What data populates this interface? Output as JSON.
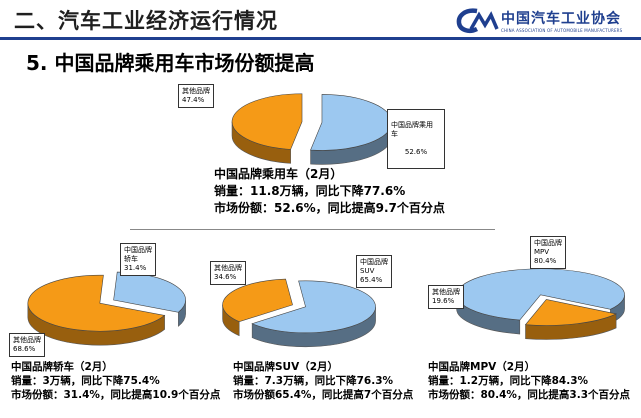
{
  "header": {
    "title": "二、汽车工业经济运行情况",
    "logo_name": "中国汽车工业协会",
    "logo_sub": "CHINA ASSOCIATION OF AUTOMOBILE MANUFACTURERS"
  },
  "section_title": "5. 中国品牌乘用车市场份额提高",
  "colors": {
    "brand": "#9cc8f0",
    "other": "#f59a17",
    "accent": "#1f3f8f"
  },
  "chart_data": [
    {
      "type": "pie",
      "categories": [
        "中国品牌乘用车",
        "其他品牌"
      ],
      "values": [
        52.6,
        47.4
      ],
      "value_labels": [
        "52.6%",
        "47.4%"
      ],
      "category_labels": [
        "中国品牌乘用\n车",
        "其他品牌"
      ],
      "stats": [
        "中国品牌乘用车（2月）",
        "销量：11.8万辆，同比下降77.6%",
        "市场份额：52.6%，同比提高9.7个百分点"
      ]
    },
    {
      "type": "pie",
      "categories": [
        "中国品牌轿车",
        "其他品牌"
      ],
      "values": [
        31.4,
        68.6
      ],
      "value_labels": [
        "31.4%",
        "68.6%"
      ],
      "category_labels": [
        "中国品牌\n轿车",
        "其他品牌"
      ],
      "stats": [
        "中国品牌轿车（2月）",
        "销量：3万辆，同比下降75.4%",
        "市场份额：31.4%，同比提高10.9个百分点"
      ]
    },
    {
      "type": "pie",
      "categories": [
        "中国品牌SUV",
        "其他品牌"
      ],
      "values": [
        65.4,
        34.6
      ],
      "value_labels": [
        "65.4%",
        "34.6%"
      ],
      "category_labels": [
        "中国品牌\nSUV",
        "其他品牌"
      ],
      "stats": [
        "中国品牌SUV（2月）",
        "销量：7.3万辆，同比下降76.3%",
        "市场份额65.4%，同比提高7个百分点"
      ]
    },
    {
      "type": "pie",
      "categories": [
        "中国品牌MPV",
        "其他品牌"
      ],
      "values": [
        80.4,
        19.6
      ],
      "value_labels": [
        "80.4%",
        "19.6%"
      ],
      "category_labels": [
        "中国品牌\nMPV",
        "其他品牌"
      ],
      "stats": [
        "中国品牌MPV（2月）",
        "销量：1.2万辆，同比下降84.3%",
        "市场份额：80.4%，同比提高3.3个百分点"
      ]
    }
  ]
}
